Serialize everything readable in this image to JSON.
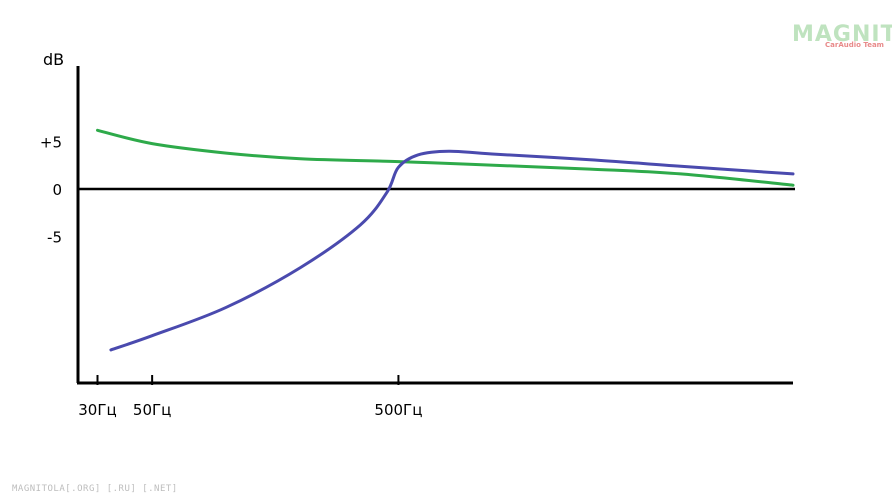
{
  "chart_data": {
    "type": "line",
    "title": "",
    "ylabel": "dB",
    "xlabel": "",
    "y_ticks": [
      {
        "value": 5,
        "label": "+5"
      },
      {
        "value": 0,
        "label": "0"
      },
      {
        "value": -5,
        "label": "-5"
      }
    ],
    "x_ticks": [
      {
        "value": 30,
        "label": "30Гц"
      },
      {
        "value": 50,
        "label": "50Гц"
      },
      {
        "value": 500,
        "label": "500Гц"
      }
    ],
    "x_scale": "log",
    "xlim": [
      25,
      20000
    ],
    "ylim": [
      -20.5,
      13
    ],
    "series": [
      {
        "color": "#2eaa4a",
        "points": [
          [
            30,
            6.2
          ],
          [
            50,
            4.8
          ],
          [
            100,
            3.8
          ],
          [
            200,
            3.2
          ],
          [
            500,
            2.9
          ],
          [
            1000,
            2.6
          ],
          [
            3000,
            2.1
          ],
          [
            7000,
            1.6
          ],
          [
            20000,
            0.4
          ]
        ]
      },
      {
        "color": "#4a4aae",
        "points": [
          [
            34,
            -17
          ],
          [
            50,
            -15.5
          ],
          [
            100,
            -12.5
          ],
          [
            200,
            -8.3
          ],
          [
            350,
            -3.8
          ],
          [
            450,
            -0.3
          ],
          [
            500,
            2.3
          ],
          [
            600,
            3.6
          ],
          [
            800,
            4.0
          ],
          [
            1200,
            3.7
          ],
          [
            3000,
            3.1
          ],
          [
            7000,
            2.4
          ],
          [
            20000,
            1.6
          ]
        ]
      }
    ],
    "grid": false,
    "legend": "none"
  },
  "watermark": {
    "logo_text": "MAGNITOLA",
    "logo_sub": "CarAudio Team",
    "footer": "MAGNITOLA[.ORG] [.RU] [.NET]"
  }
}
